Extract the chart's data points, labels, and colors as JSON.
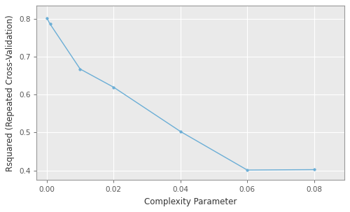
{
  "x": [
    0.0,
    0.001,
    0.01,
    0.02,
    0.04,
    0.06,
    0.08
  ],
  "y": [
    0.803,
    0.787,
    0.668,
    0.62,
    0.503,
    0.401,
    0.402
  ],
  "line_color": "#6baed6",
  "marker_color": "#6baed6",
  "marker_style": "o",
  "marker_size": 2.5,
  "line_width": 1.0,
  "xlabel": "Complexity Parameter",
  "ylabel": "Rsquared (Repeated Cross-Validation)",
  "xlim": [
    -0.003,
    0.089
  ],
  "ylim": [
    0.375,
    0.835
  ],
  "xticks": [
    0.0,
    0.02,
    0.04,
    0.06,
    0.08
  ],
  "yticks": [
    0.4,
    0.5,
    0.6,
    0.7,
    0.8
  ],
  "plot_bg_color": "#eaeaea",
  "fig_bg_color": "#ffffff",
  "grid_color": "#ffffff",
  "spine_color": "#999999",
  "axis_label_fontsize": 8.5,
  "tick_fontsize": 7.5,
  "tick_color": "#555555",
  "label_color": "#333333"
}
